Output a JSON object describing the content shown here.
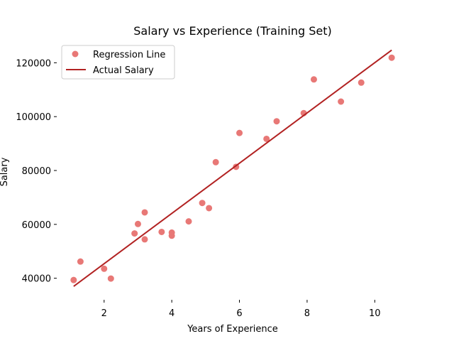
{
  "chart_data": {
    "type": "scatter",
    "title": "Salary vs Experience (Training Set)",
    "xlabel": "Years of Experience",
    "ylabel": "Salary",
    "xlim": [
      0.6,
      11.0
    ],
    "ylim": [
      32000,
      128000
    ],
    "x_ticks": [
      2,
      4,
      6,
      8,
      10
    ],
    "y_ticks": [
      40000,
      60000,
      80000,
      100000,
      120000
    ],
    "x_tick_labels": [
      "2",
      "4",
      "6",
      "8",
      "10"
    ],
    "y_tick_labels": [
      "40000",
      "60000",
      "80000",
      "100000",
      "120000"
    ],
    "grid": false,
    "legend_position": "upper-left",
    "series": [
      {
        "name": "Regression Line",
        "kind": "scatter",
        "color": "#e87876",
        "points": [
          {
            "x": 1.1,
            "y": 39343
          },
          {
            "x": 1.3,
            "y": 46205
          },
          {
            "x": 2.0,
            "y": 43525
          },
          {
            "x": 2.2,
            "y": 39891
          },
          {
            "x": 2.9,
            "y": 56642
          },
          {
            "x": 3.0,
            "y": 60150
          },
          {
            "x": 3.2,
            "y": 54445
          },
          {
            "x": 3.2,
            "y": 64445
          },
          {
            "x": 3.7,
            "y": 57189
          },
          {
            "x": 4.0,
            "y": 55794
          },
          {
            "x": 4.0,
            "y": 56957
          },
          {
            "x": 4.5,
            "y": 61111
          },
          {
            "x": 4.9,
            "y": 67938
          },
          {
            "x": 5.1,
            "y": 66029
          },
          {
            "x": 5.3,
            "y": 83088
          },
          {
            "x": 5.9,
            "y": 81363
          },
          {
            "x": 6.0,
            "y": 93940
          },
          {
            "x": 6.8,
            "y": 91738
          },
          {
            "x": 7.1,
            "y": 98273
          },
          {
            "x": 7.9,
            "y": 101302
          },
          {
            "x": 8.2,
            "y": 113812
          },
          {
            "x": 9.0,
            "y": 105582
          },
          {
            "x": 9.6,
            "y": 112635
          },
          {
            "x": 10.5,
            "y": 121872
          }
        ]
      },
      {
        "name": "Actual Salary",
        "kind": "line",
        "color": "#b22222",
        "points": [
          {
            "x": 1.1,
            "y": 37000
          },
          {
            "x": 10.5,
            "y": 124700
          }
        ]
      }
    ]
  }
}
